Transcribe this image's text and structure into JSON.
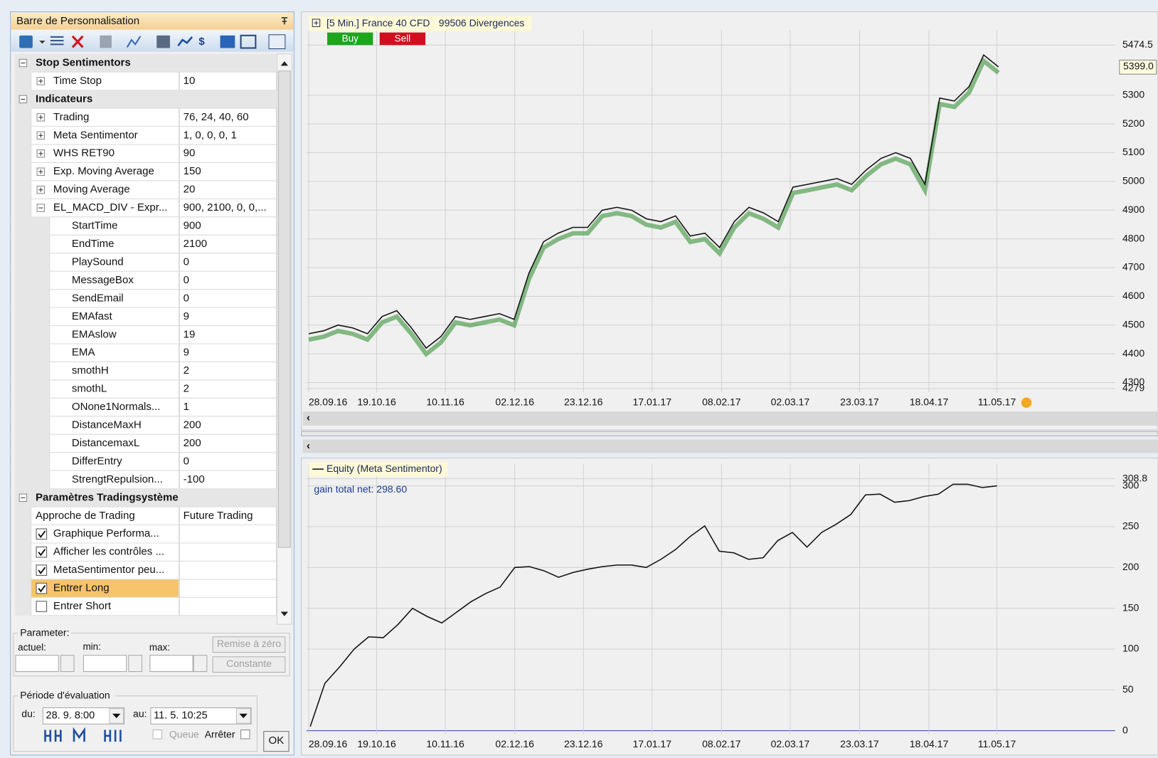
{
  "panel": {
    "title": "Barre de Personnalisation",
    "sections": [
      {
        "title": "Stop Sentimentors",
        "rows": [
          {
            "name": "Time Stop",
            "value": "10",
            "expanded": false
          }
        ]
      },
      {
        "title": "Indicateurs",
        "rows": [
          {
            "name": "Trading",
            "value": "76, 24, 40, 60",
            "expanded": false
          },
          {
            "name": "Meta Sentimentor",
            "value": "1, 0, 0, 0, 1",
            "expanded": false
          },
          {
            "name": "WHS RET90",
            "value": "90",
            "expanded": false
          },
          {
            "name": "Exp. Moving Average",
            "value": "150",
            "expanded": false
          },
          {
            "name": "Moving Average",
            "value": "20",
            "expanded": false
          },
          {
            "name": "EL_MACD_DIV - Expr...",
            "value": "900, 2100, 0, 0,...",
            "expanded": true,
            "children": [
              {
                "name": "StartTime",
                "value": "900"
              },
              {
                "name": "EndTime",
                "value": "2100"
              },
              {
                "name": "PlaySound",
                "value": "0"
              },
              {
                "name": "MessageBox",
                "value": "0"
              },
              {
                "name": "SendEmail",
                "value": "0"
              },
              {
                "name": "EMAfast",
                "value": "9"
              },
              {
                "name": "EMAslow",
                "value": "19"
              },
              {
                "name": "EMA",
                "value": "9"
              },
              {
                "name": "smothH",
                "value": "2"
              },
              {
                "name": "smothL",
                "value": "2"
              },
              {
                "name": "ONone1Normals...",
                "value": "1"
              },
              {
                "name": "DistanceMaxH",
                "value": "200"
              },
              {
                "name": "DistancemaxL",
                "value": "200"
              },
              {
                "name": "DifferEntry",
                "value": "0"
              },
              {
                "name": "StrengtRepulsion...",
                "value": "-100"
              }
            ]
          }
        ]
      },
      {
        "title": "Paramètres Tradingsystème",
        "rows": [
          {
            "name": "Approche de Trading",
            "value": "Future Trading"
          }
        ],
        "checkboxes": [
          {
            "name": "Graphique Performa...",
            "checked": true
          },
          {
            "name": "Afficher les contrôles ...",
            "checked": true
          },
          {
            "name": "MetaSentimentor peu...",
            "checked": true
          },
          {
            "name": "Entrer Long",
            "checked": true,
            "selected": true
          },
          {
            "name": "Entrer Short",
            "checked": false
          }
        ]
      }
    ]
  },
  "parameter": {
    "title": "Parameter:",
    "actuel": "actuel:",
    "min": "min:",
    "max": "max:",
    "reset": "Remise à zéro",
    "constant": "Constante"
  },
  "evaluation": {
    "title": "Période d'évaluation",
    "from_label": "du:",
    "from": "28. 9.  8:00",
    "to_label": "au:",
    "to": "11. 5. 10:25",
    "queue": "Queue",
    "stop": "Arrêter",
    "ok": "OK"
  },
  "price_chart": {
    "title": "[5 Min.] France 40 CFD",
    "subtitle": "99506 Divergences",
    "buy": "Buy",
    "sell": "Sell",
    "dates": [
      "28.09.16",
      "19.10.16",
      "10.11.16",
      "02.12.16",
      "23.12.16",
      "17.01.17",
      "08.02.17",
      "02.03.17",
      "23.03.17",
      "18.04.17",
      "11.05.17"
    ],
    "values": [
      4470,
      4480,
      4500,
      4490,
      4470,
      4530,
      4550,
      4490,
      4420,
      4460,
      4530,
      4520,
      4530,
      4540,
      4520,
      4680,
      4790,
      4820,
      4840,
      4840,
      4900,
      4910,
      4900,
      4870,
      4860,
      4880,
      4810,
      4820,
      4770,
      4860,
      4910,
      4890,
      4860,
      4980,
      4990,
      5000,
      5010,
      4990,
      5040,
      5080,
      5100,
      5080,
      4990,
      5290,
      5280,
      5330,
      5440,
      5399
    ],
    "ylim": [
      4279,
      5474.5
    ],
    "yticks": [
      4279,
      4300,
      4400,
      4500,
      4600,
      4700,
      4800,
      4900,
      5000,
      5100,
      5200,
      5300,
      5474.5
    ],
    "last": {
      "value": 5399,
      "label": "5399.0"
    },
    "grid": true
  },
  "equity_chart": {
    "legend": "Equity (Meta Sentimentor)",
    "note": "gain total net: 298.60",
    "dates": [
      "28.09.16",
      "19.10.16",
      "10.11.16",
      "02.12.16",
      "23.12.16",
      "17.01.17",
      "08.02.17",
      "02.03.17",
      "23.03.17",
      "18.04.17",
      "11.05.17"
    ],
    "values": [
      5,
      58,
      78,
      100,
      115,
      114,
      130,
      150,
      140,
      132,
      145,
      158,
      168,
      176,
      200,
      201,
      196,
      188,
      194,
      198,
      201,
      203,
      203,
      200,
      210,
      222,
      238,
      251,
      220,
      218,
      210,
      212,
      233,
      243,
      225,
      243,
      253,
      265,
      289,
      290,
      280,
      282,
      287,
      290,
      302,
      302,
      298,
      300
    ],
    "ylim": [
      0,
      308.8
    ],
    "yticks": [
      0,
      50,
      100,
      150,
      200,
      250,
      300,
      308.8
    ],
    "grid": true
  }
}
